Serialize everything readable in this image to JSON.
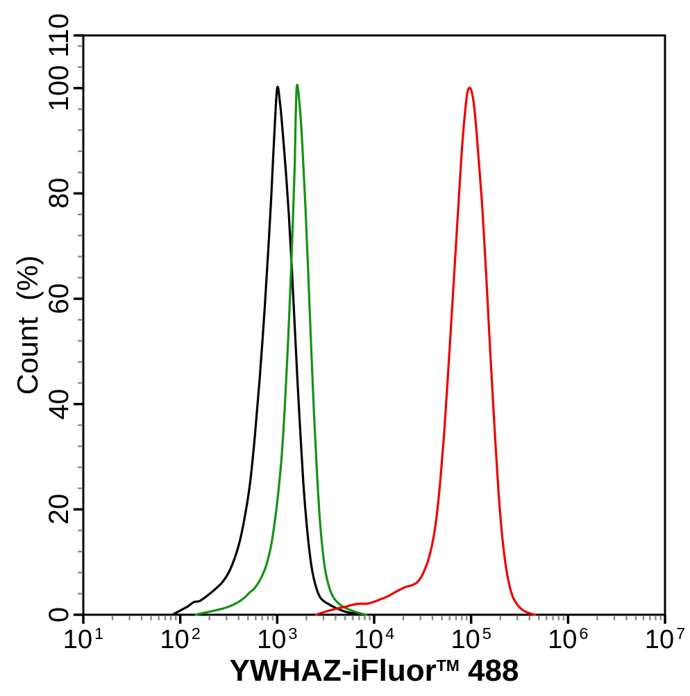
{
  "figure": {
    "background_color": "#ffffff",
    "frame_color": "#000000",
    "minor_tick_color": "#8c8c8c"
  },
  "chart_data": {
    "type": "line",
    "subtype": "flow-cytometry-histogram",
    "title": "",
    "xlabel": "YWHAZ-iFluor™ 488",
    "xlabel_main": "YWHAZ-iFluor",
    "xlabel_sup": "TM",
    "xlabel_suffix": " 488",
    "ylabel": "Count  (%)",
    "x_scale": "log",
    "xlim_log10": [
      1,
      7
    ],
    "ylim": [
      0,
      110
    ],
    "grid": false,
    "legend": "none",
    "x_axis": {
      "tick_label_base": "10",
      "decade_exponents": [
        1,
        2,
        3,
        4,
        5,
        6,
        7
      ],
      "minor_ticks": "2-9 within each decade"
    },
    "y_axis": {
      "major_tick_values": [
        0,
        20,
        40,
        60,
        80,
        100,
        110
      ],
      "major_tick_labels": [
        "0",
        "20",
        "40",
        "60",
        "80",
        "100",
        "110"
      ],
      "minor_tick_step": 4
    },
    "series": [
      {
        "name": "black-peak",
        "color": "#000000",
        "peak_x": 1000,
        "peak_y": 100,
        "points_log10x_pct": [
          [
            1.92,
            0
          ],
          [
            2.0,
            0.8
          ],
          [
            2.08,
            1.6
          ],
          [
            2.14,
            2.4
          ],
          [
            2.2,
            2.6
          ],
          [
            2.27,
            3.5
          ],
          [
            2.35,
            4.7
          ],
          [
            2.44,
            6.3
          ],
          [
            2.52,
            8.8
          ],
          [
            2.6,
            13
          ],
          [
            2.66,
            18
          ],
          [
            2.72,
            25
          ],
          [
            2.77,
            34
          ],
          [
            2.82,
            45
          ],
          [
            2.87,
            58
          ],
          [
            2.91,
            70
          ],
          [
            2.94,
            80
          ],
          [
            2.97,
            91
          ],
          [
            3.0,
            100
          ],
          [
            3.03,
            97
          ],
          [
            3.06,
            91
          ],
          [
            3.09,
            84
          ],
          [
            3.12,
            76
          ],
          [
            3.15,
            66
          ],
          [
            3.18,
            55
          ],
          [
            3.21,
            44
          ],
          [
            3.24,
            34
          ],
          [
            3.27,
            25
          ],
          [
            3.3,
            18
          ],
          [
            3.33,
            12.5
          ],
          [
            3.36,
            8.5
          ],
          [
            3.4,
            5.3
          ],
          [
            3.44,
            3.4
          ],
          [
            3.48,
            2.6
          ],
          [
            3.53,
            2.0
          ],
          [
            3.58,
            1.5
          ],
          [
            3.64,
            1.0
          ],
          [
            3.7,
            0.6
          ],
          [
            3.77,
            0.3
          ],
          [
            3.84,
            0.1
          ],
          [
            3.9,
            0
          ]
        ]
      },
      {
        "name": "green-peak",
        "color": "#149114",
        "peak_x": 1600,
        "peak_y": 100,
        "points_log10x_pct": [
          [
            2.16,
            0
          ],
          [
            2.28,
            0.5
          ],
          [
            2.38,
            0.9
          ],
          [
            2.48,
            1.4
          ],
          [
            2.58,
            2.2
          ],
          [
            2.66,
            3.2
          ],
          [
            2.72,
            4.3
          ],
          [
            2.76,
            4.9
          ],
          [
            2.82,
            6.5
          ],
          [
            2.88,
            9
          ],
          [
            2.93,
            12.5
          ],
          [
            2.97,
            17
          ],
          [
            3.01,
            23
          ],
          [
            3.05,
            31
          ],
          [
            3.08,
            40
          ],
          [
            3.11,
            51
          ],
          [
            3.14,
            64
          ],
          [
            3.16,
            74
          ],
          [
            3.18,
            85
          ],
          [
            3.2,
            100
          ],
          [
            3.23,
            97
          ],
          [
            3.26,
            89
          ],
          [
            3.29,
            78
          ],
          [
            3.32,
            65
          ],
          [
            3.35,
            51
          ],
          [
            3.38,
            38
          ],
          [
            3.41,
            27
          ],
          [
            3.44,
            18
          ],
          [
            3.47,
            12
          ],
          [
            3.5,
            8
          ],
          [
            3.54,
            5
          ],
          [
            3.58,
            3.3
          ],
          [
            3.63,
            2.2
          ],
          [
            3.68,
            1.5
          ],
          [
            3.74,
            1.0
          ],
          [
            3.8,
            0.6
          ],
          [
            3.86,
            0.25
          ],
          [
            3.92,
            0
          ]
        ]
      },
      {
        "name": "red-peak",
        "color": "#ec0000",
        "peak_x": 95000,
        "peak_y": 100,
        "points_log10x_pct": [
          [
            3.4,
            0
          ],
          [
            3.5,
            0.6
          ],
          [
            3.6,
            1.1
          ],
          [
            3.7,
            1.5
          ],
          [
            3.78,
            1.9
          ],
          [
            3.85,
            2.1
          ],
          [
            3.92,
            2.1
          ],
          [
            3.99,
            2.4
          ],
          [
            4.06,
            2.9
          ],
          [
            4.13,
            3.4
          ],
          [
            4.2,
            4.1
          ],
          [
            4.27,
            4.8
          ],
          [
            4.33,
            5.3
          ],
          [
            4.39,
            5.6
          ],
          [
            4.44,
            6.1
          ],
          [
            4.48,
            7
          ],
          [
            4.52,
            8.5
          ],
          [
            4.56,
            10.5
          ],
          [
            4.6,
            13.5
          ],
          [
            4.64,
            18
          ],
          [
            4.68,
            25
          ],
          [
            4.72,
            34
          ],
          [
            4.76,
            45
          ],
          [
            4.8,
            57
          ],
          [
            4.84,
            69
          ],
          [
            4.87,
            78
          ],
          [
            4.9,
            87
          ],
          [
            4.93,
            94
          ],
          [
            4.96,
            99
          ],
          [
            4.99,
            100
          ],
          [
            5.02,
            98
          ],
          [
            5.05,
            93
          ],
          [
            5.08,
            86
          ],
          [
            5.12,
            76
          ],
          [
            5.16,
            63
          ],
          [
            5.2,
            49
          ],
          [
            5.24,
            36
          ],
          [
            5.28,
            24
          ],
          [
            5.32,
            15
          ],
          [
            5.36,
            9
          ],
          [
            5.4,
            5.2
          ],
          [
            5.44,
            3
          ],
          [
            5.49,
            1.6
          ],
          [
            5.54,
            0.8
          ],
          [
            5.6,
            0.3
          ],
          [
            5.66,
            0
          ]
        ]
      }
    ]
  }
}
